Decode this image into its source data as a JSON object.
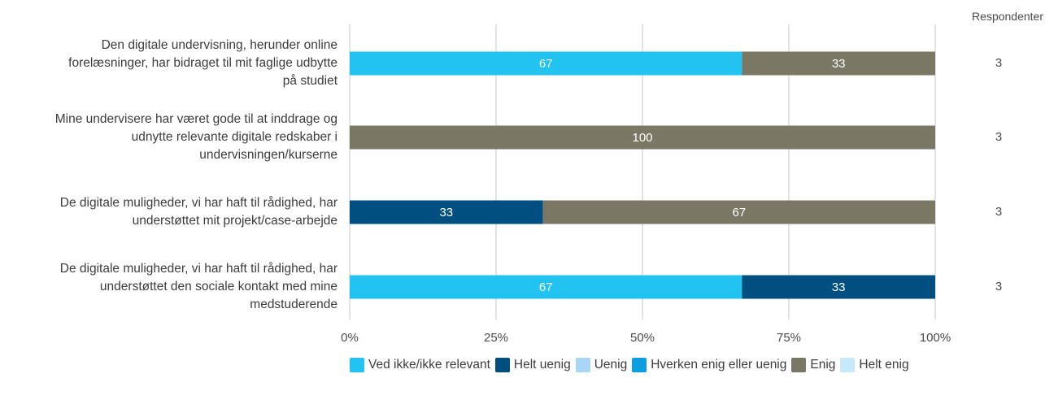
{
  "chart_data": {
    "type": "bar",
    "orientation": "horizontal",
    "stacked": true,
    "percent": true,
    "xlim": [
      0,
      100
    ],
    "x_ticks": [
      "0%",
      "25%",
      "50%",
      "75%",
      "100%"
    ],
    "respondents_header": "Respondenter",
    "categories": [
      "Den digitale undervisning, herunder online forelæsninger, har bidraget til mit faglige udbytte på studiet",
      "Mine undervisere har været gode til at inddrage og udnytte relevante digitale redskaber i undervisningen/kurserne",
      "De digitale muligheder, vi har haft til rådighed, har understøttet mit projekt/case-arbejde",
      "De digitale muligheder, vi har haft til rådighed, har understøttet den sociale kontakt med mine medstuderende"
    ],
    "respondents": [
      3,
      3,
      3,
      3
    ],
    "series": [
      {
        "name": "Ved ikke/ikke relevant",
        "color": "#22c3f1",
        "values": [
          67,
          0,
          0,
          67
        ]
      },
      {
        "name": "Helt uenig",
        "color": "#004f80",
        "values": [
          0,
          0,
          33,
          33
        ]
      },
      {
        "name": "Uenig",
        "color": "#a9d6f5",
        "values": [
          0,
          0,
          0,
          0
        ]
      },
      {
        "name": "Hverken enig eller uenig",
        "color": "#0b9ee0",
        "values": [
          0,
          0,
          0,
          0
        ]
      },
      {
        "name": "Enig",
        "color": "#7a7765",
        "values": [
          33,
          100,
          67,
          0
        ]
      },
      {
        "name": "Helt enig",
        "color": "#c7eafb",
        "values": [
          0,
          0,
          0,
          0
        ]
      }
    ],
    "legend_position": "bottom",
    "grid": true
  },
  "question_lines": [
    [
      "Den digitale undervisning, herunder online",
      "forelæsninger, har bidraget til mit faglige udbytte",
      "på studiet"
    ],
    [
      "Mine undervisere har været gode til at inddrage og",
      "udnytte relevante digitale redskaber i",
      "undervisningen/kurserne"
    ],
    [
      "De digitale muligheder, vi har haft til rådighed, har",
      "understøttet mit projekt/case-arbejde"
    ],
    [
      "De digitale muligheder, vi har haft til rådighed, har",
      "understøttet den sociale kontakt med mine",
      "medstuderende"
    ]
  ]
}
